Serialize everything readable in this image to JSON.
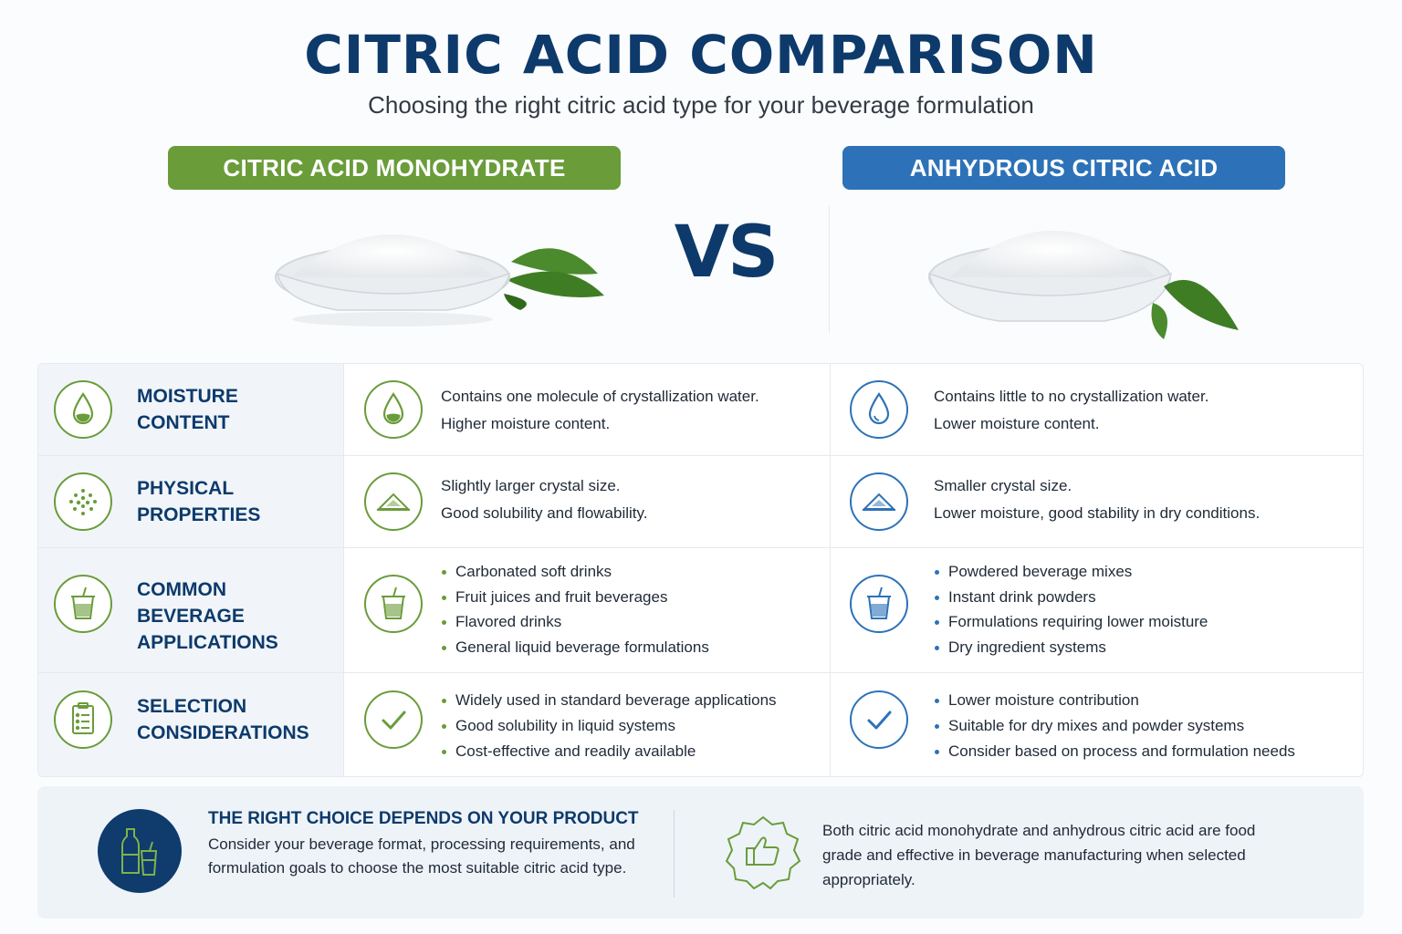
{
  "header": {
    "title": "CITRIC ACID COMPARISON",
    "subtitle": "Choosing the right citric acid type for your beverage formulation"
  },
  "products": {
    "left": {
      "label": "CITRIC ACID MONOHYDRATE",
      "color": "#6a9c3a"
    },
    "right": {
      "label": "ANHYDROUS CITRIC ACID",
      "color": "#2d72b8"
    },
    "vs": "VS"
  },
  "rows": [
    {
      "label_line1": "MOISTURE",
      "label_line2": "CONTENT",
      "icon": "water-drop-icon",
      "left": [
        "Contains one molecule of crystallization water.",
        "Higher moisture content."
      ],
      "right": [
        "Contains little to no crystallization water.",
        "Lower moisture content."
      ]
    },
    {
      "label_line1": "PHYSICAL",
      "label_line2": "PROPERTIES",
      "icon": "crystals-icon",
      "left": [
        "Slightly larger crystal size.",
        "Good solubility and flowability."
      ],
      "right": [
        "Smaller crystal size.",
        "Lower moisture, good stability in dry conditions."
      ]
    },
    {
      "label_line1": "COMMON BEVERAGE",
      "label_line2": "APPLICATIONS",
      "icon": "drink-cup-icon",
      "left": [
        "Carbonated soft drinks",
        "Fruit juices and fruit beverages",
        "Flavored drinks",
        "General liquid beverage formulations"
      ],
      "right": [
        "Powdered beverage mixes",
        "Instant drink powders",
        "Formulations requiring lower moisture",
        "Dry ingredient systems"
      ]
    },
    {
      "label_line1": "SELECTION",
      "label_line2": "CONSIDERATIONS",
      "icon": "clipboard-icon",
      "left": [
        "Widely used in standard beverage applications",
        "Good solubility in liquid systems",
        "Cost-effective and readily available"
      ],
      "right": [
        "Lower moisture contribution",
        "Suitable for dry mixes and powder systems",
        "Consider based on process and formulation needs"
      ]
    }
  ],
  "bottom": {
    "title": "THE RIGHT CHOICE DEPENDS ON YOUR PRODUCT",
    "body": "Consider your beverage format, processing requirements, and formulation goals to choose the most suitable citric acid type.",
    "right": "Both citric acid monohydrate and anhydrous citric acid are food grade and effective in beverage manufacturing when selected appropriately."
  },
  "colors": {
    "navy": "#0d3a6b",
    "green": "#6a9c3a",
    "blue": "#2d72b8"
  }
}
